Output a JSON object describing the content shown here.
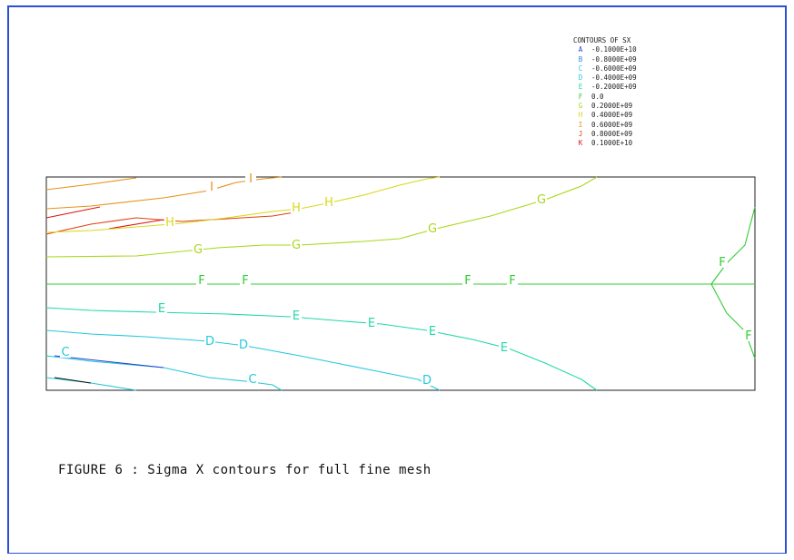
{
  "legend": {
    "title": "CONTOURS OF SX",
    "items": [
      {
        "key": "A",
        "value": "-0.1000E+10",
        "color": "#2a3fd0"
      },
      {
        "key": "B",
        "value": "-0.8000E+09",
        "color": "#2a8ad8"
      },
      {
        "key": "C",
        "value": "-0.6000E+09",
        "color": "#22c8d8"
      },
      {
        "key": "D",
        "value": "-0.4000E+09",
        "color": "#22c8e0"
      },
      {
        "key": "E",
        "value": "-0.2000E+09",
        "color": "#20d8a8"
      },
      {
        "key": "F",
        "value": "0.0",
        "color": "#33cc33"
      },
      {
        "key": "G",
        "value": "0.2000E+09",
        "color": "#a8d818"
      },
      {
        "key": "H",
        "value": "0.4000E+09",
        "color": "#d8d818"
      },
      {
        "key": "I",
        "value": "0.6000E+09",
        "color": "#e89018"
      },
      {
        "key": "J",
        "value": "0.8000E+09",
        "color": "#e04010"
      },
      {
        "key": "K",
        "value": "0.1000E+10",
        "color": "#e01010"
      }
    ]
  },
  "contour_labels": {
    "I": "I",
    "H": "H",
    "G": "G",
    "F": "F",
    "E": "E",
    "D": "D",
    "C": "C"
  },
  "caption": "FIGURE 6 : Sigma X contours for full fine mesh"
}
